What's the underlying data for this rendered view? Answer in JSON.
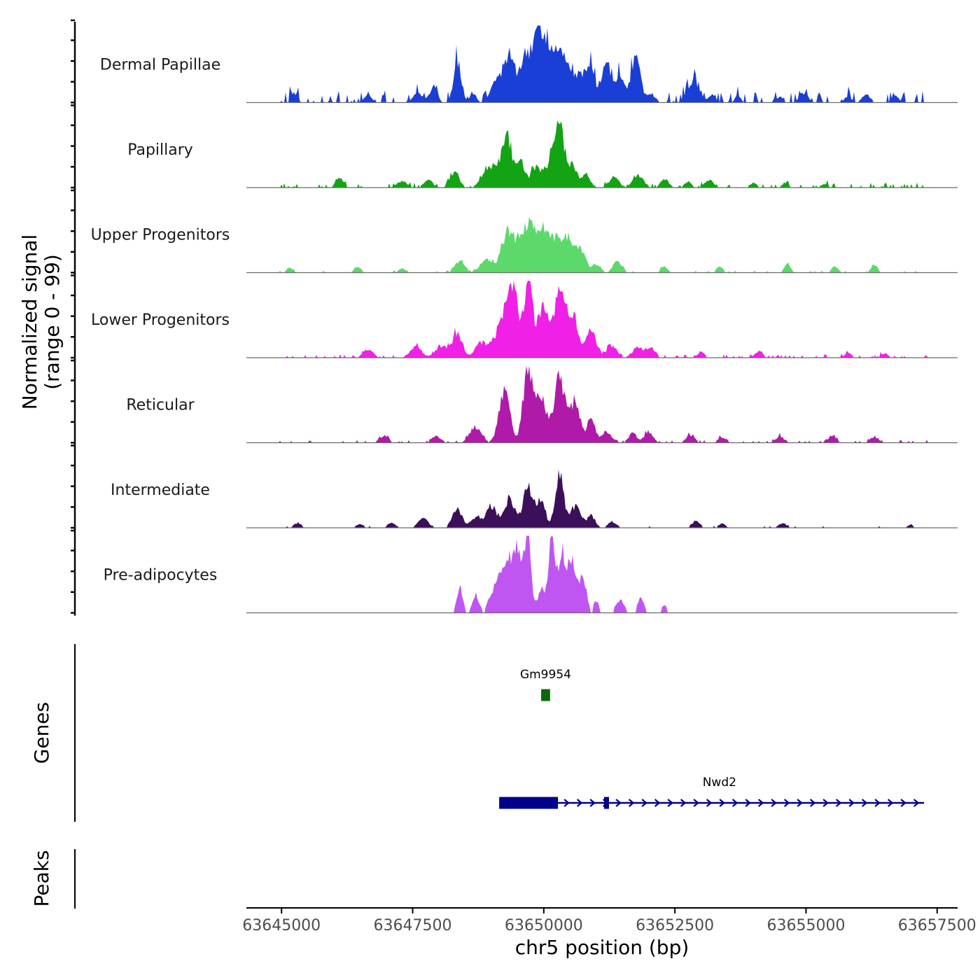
{
  "chart_data": {
    "type": "area",
    "title": "",
    "xlabel": "chr5 position (bp)",
    "ylabel_line1": "Normalized signal",
    "ylabel_line2": "(range 0 - 99)",
    "xlim": [
      63644330,
      63657890
    ],
    "ylim": [
      0,
      99
    ],
    "x_ticks": [
      63645000,
      63647500,
      63650000,
      63652500,
      63655000,
      63657500
    ],
    "x_tick_labels": [
      "63645000",
      "63647500",
      "63650000",
      "63652500",
      "63655000",
      "63657500"
    ],
    "track_panel_labels": {
      "genes": "Genes",
      "peaks": "Peaks"
    },
    "series": [
      {
        "name": "Dermal Papillae",
        "color": "#1a3fd6",
        "peaks": [
          [
            63645250,
            0.12,
            60
          ],
          [
            63646650,
            0.1,
            70
          ],
          [
            63647600,
            0.12,
            90
          ],
          [
            63647900,
            0.22,
            70
          ],
          [
            63648350,
            0.55,
            70
          ],
          [
            63648650,
            0.12,
            60
          ],
          [
            63649100,
            0.25,
            120
          ],
          [
            63649350,
            0.6,
            110
          ],
          [
            63649650,
            0.55,
            90
          ],
          [
            63649850,
            0.75,
            90
          ],
          [
            63650000,
            0.52,
            80
          ],
          [
            63650150,
            0.45,
            90
          ],
          [
            63650300,
            0.62,
            100
          ],
          [
            63650500,
            0.3,
            90
          ],
          [
            63650700,
            0.35,
            90
          ],
          [
            63650900,
            0.42,
            80
          ],
          [
            63651200,
            0.52,
            90
          ],
          [
            63651450,
            0.32,
            80
          ],
          [
            63651750,
            0.58,
            90
          ],
          [
            63652050,
            0.1,
            80
          ],
          [
            63652850,
            0.28,
            110
          ],
          [
            63653200,
            0.1,
            60
          ],
          [
            63653700,
            0.08,
            60
          ],
          [
            63654500,
            0.08,
            60
          ],
          [
            63654950,
            0.12,
            80
          ],
          [
            63655800,
            0.08,
            60
          ],
          [
            63656150,
            0.1,
            80
          ],
          [
            63656700,
            0.1,
            60
          ]
        ],
        "noise": [
          0.15,
          0.08,
          11
        ]
      },
      {
        "name": "Papillary",
        "color": "#14a314",
        "peaks": [
          [
            63646100,
            0.12,
            70
          ],
          [
            63647300,
            0.08,
            100
          ],
          [
            63647800,
            0.1,
            80
          ],
          [
            63648300,
            0.18,
            90
          ],
          [
            63649000,
            0.28,
            150
          ],
          [
            63649300,
            0.65,
            90
          ],
          [
            63649550,
            0.35,
            80
          ],
          [
            63649850,
            0.25,
            100
          ],
          [
            63650150,
            0.32,
            120
          ],
          [
            63650300,
            0.75,
            90
          ],
          [
            63650550,
            0.28,
            80
          ],
          [
            63650800,
            0.18,
            80
          ],
          [
            63651350,
            0.14,
            80
          ],
          [
            63651800,
            0.16,
            100
          ],
          [
            63652300,
            0.1,
            80
          ],
          [
            63652750,
            0.08,
            60
          ],
          [
            63653150,
            0.1,
            80
          ],
          [
            63654000,
            0.06,
            60
          ],
          [
            63654600,
            0.06,
            60
          ],
          [
            63655350,
            0.05,
            60
          ]
        ],
        "noise": [
          0.12,
          0.04,
          12
        ]
      },
      {
        "name": "Upper Progenitors",
        "color": "#5cd96a",
        "peaks": [
          [
            63645150,
            0.06,
            60
          ],
          [
            63646450,
            0.08,
            60
          ],
          [
            63647300,
            0.06,
            60
          ],
          [
            63648400,
            0.15,
            90
          ],
          [
            63648900,
            0.18,
            110
          ],
          [
            63649300,
            0.48,
            120
          ],
          [
            63649650,
            0.55,
            150
          ],
          [
            63650000,
            0.58,
            160
          ],
          [
            63650400,
            0.45,
            150
          ],
          [
            63650700,
            0.25,
            100
          ],
          [
            63651000,
            0.1,
            80
          ],
          [
            63651400,
            0.15,
            80
          ],
          [
            63652300,
            0.08,
            60
          ],
          [
            63653350,
            0.08,
            60
          ],
          [
            63654650,
            0.12,
            60
          ],
          [
            63655550,
            0.08,
            60
          ],
          [
            63656300,
            0.1,
            60
          ]
        ],
        "noise": [
          0.07,
          0.03,
          13
        ]
      },
      {
        "name": "Lower Progenitors",
        "color": "#f020e6",
        "peaks": [
          [
            63646650,
            0.1,
            100
          ],
          [
            63647550,
            0.15,
            100
          ],
          [
            63648050,
            0.15,
            120
          ],
          [
            63648350,
            0.32,
            90
          ],
          [
            63648800,
            0.18,
            110
          ],
          [
            63649200,
            0.4,
            150
          ],
          [
            63649400,
            0.85,
            100
          ],
          [
            63649700,
            0.95,
            90
          ],
          [
            63650000,
            0.7,
            100
          ],
          [
            63650300,
            0.9,
            90
          ],
          [
            63650550,
            0.55,
            100
          ],
          [
            63650900,
            0.35,
            100
          ],
          [
            63651300,
            0.15,
            100
          ],
          [
            63651800,
            0.14,
            100
          ],
          [
            63652050,
            0.12,
            80
          ],
          [
            63653000,
            0.08,
            60
          ],
          [
            63654100,
            0.08,
            70
          ],
          [
            63655800,
            0.06,
            70
          ],
          [
            63656500,
            0.06,
            70
          ]
        ],
        "noise": [
          0.08,
          0.04,
          14
        ]
      },
      {
        "name": "Reticular",
        "color": "#b01aa9",
        "peaks": [
          [
            63646950,
            0.08,
            90
          ],
          [
            63647950,
            0.08,
            90
          ],
          [
            63648700,
            0.2,
            110
          ],
          [
            63649250,
            0.7,
            100
          ],
          [
            63649700,
            1.0,
            90
          ],
          [
            63649950,
            0.62,
            100
          ],
          [
            63650300,
            0.88,
            100
          ],
          [
            63650600,
            0.55,
            90
          ],
          [
            63650900,
            0.3,
            80
          ],
          [
            63651200,
            0.15,
            90
          ],
          [
            63651700,
            0.12,
            80
          ],
          [
            63652000,
            0.14,
            80
          ],
          [
            63652800,
            0.1,
            80
          ],
          [
            63653400,
            0.07,
            80
          ],
          [
            63654500,
            0.08,
            80
          ],
          [
            63655500,
            0.08,
            80
          ],
          [
            63656300,
            0.07,
            80
          ]
        ],
        "noise": [
          0.07,
          0.04,
          15
        ]
      },
      {
        "name": "Intermediate",
        "color": "#3b0f5a",
        "peaks": [
          [
            63645300,
            0.06,
            70
          ],
          [
            63646500,
            0.05,
            70
          ],
          [
            63647100,
            0.07,
            70
          ],
          [
            63647700,
            0.13,
            90
          ],
          [
            63648350,
            0.25,
            90
          ],
          [
            63648700,
            0.14,
            90
          ],
          [
            63649000,
            0.28,
            100
          ],
          [
            63649350,
            0.38,
            100
          ],
          [
            63649700,
            0.52,
            90
          ],
          [
            63649950,
            0.35,
            80
          ],
          [
            63650300,
            0.68,
            80
          ],
          [
            63650600,
            0.28,
            100
          ],
          [
            63650900,
            0.15,
            80
          ],
          [
            63651300,
            0.08,
            80
          ],
          [
            63652900,
            0.09,
            70
          ],
          [
            63653400,
            0.05,
            70
          ],
          [
            63654550,
            0.06,
            70
          ],
          [
            63657000,
            0.04,
            60
          ]
        ],
        "noise": [
          0.06,
          0.03,
          16
        ]
      },
      {
        "name": "Pre-adipocytes",
        "color": "#c056f2",
        "peaks": [
          [
            63648400,
            0.32,
            60
          ],
          [
            63648700,
            0.24,
            60
          ],
          [
            63649100,
            0.35,
            120
          ],
          [
            63649300,
            0.55,
            90
          ],
          [
            63649500,
            0.78,
            90
          ],
          [
            63649700,
            1.0,
            60
          ],
          [
            63649950,
            0.3,
            70
          ],
          [
            63650150,
            0.95,
            60
          ],
          [
            63650350,
            0.8,
            80
          ],
          [
            63650550,
            0.65,
            70
          ],
          [
            63650750,
            0.45,
            70
          ],
          [
            63651000,
            0.15,
            50
          ],
          [
            63651450,
            0.16,
            80
          ],
          [
            63651850,
            0.2,
            60
          ],
          [
            63652300,
            0.1,
            70
          ]
        ],
        "noise": [
          0,
          0,
          17
        ],
        "threshold": 0.06
      }
    ],
    "genes": [
      {
        "name": "Gm9954",
        "start": 63649950,
        "end": 63650120,
        "strand": "+",
        "row": 0,
        "color": "#0a6a0a",
        "exons": [
          [
            63649950,
            63650120
          ]
        ]
      },
      {
        "name": "Nwd2",
        "start": 63649150,
        "end": 63657250,
        "strand": "+",
        "row": 1,
        "color": "#00008b",
        "exons": [
          [
            63649150,
            63650270
          ],
          [
            63651150,
            63651230
          ]
        ]
      }
    ],
    "peaks_track": []
  }
}
